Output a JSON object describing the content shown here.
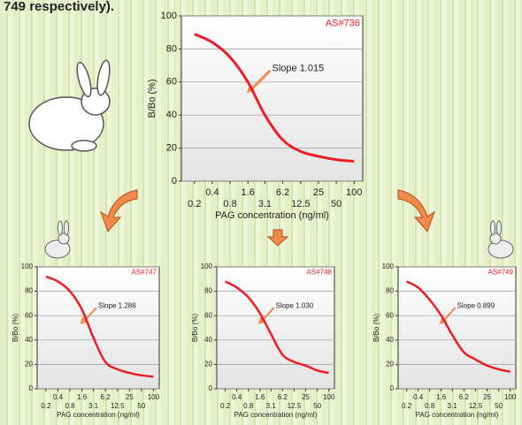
{
  "caption": "749 respectively).",
  "chart_data": [
    {
      "type": "line",
      "corner_label": "AS#736",
      "annotation": "Slope 1.015",
      "xlabel": "PAG concentration (ng/ml)",
      "ylabel": "B/Bo (%)",
      "x": [
        0.2,
        0.4,
        0.8,
        1.6,
        3.1,
        6.2,
        12.5,
        25,
        50,
        100
      ],
      "log_x": true,
      "xlim": [
        0.12,
        140
      ],
      "xticks": [
        0.2,
        0.4,
        0.8,
        1.6,
        3.1,
        6.2,
        12.5,
        25,
        50,
        100
      ],
      "ylim": [
        0,
        100
      ],
      "yticks": [
        0,
        20,
        40,
        60,
        80,
        100
      ],
      "grid": true,
      "series": [
        {
          "color": "#ee1c25",
          "values": [
            89,
            84,
            75,
            60,
            40,
            25,
            18,
            15,
            13,
            12
          ]
        }
      ]
    },
    {
      "type": "line",
      "corner_label": "AS#747",
      "annotation": "Slope 1.286",
      "xlabel": "PAG concentration (ng/ml)",
      "ylabel": "B/Bo (%)",
      "x": [
        0.2,
        0.4,
        0.8,
        1.6,
        3.1,
        6.2,
        12.5,
        25,
        50,
        100
      ],
      "log_x": true,
      "xlim": [
        0.12,
        140
      ],
      "xticks": [
        0.2,
        0.4,
        0.8,
        1.6,
        3.1,
        6.2,
        12.5,
        25,
        50,
        100
      ],
      "ylim": [
        0,
        100
      ],
      "yticks": [
        0,
        20,
        40,
        60,
        80,
        100
      ],
      "grid": true,
      "series": [
        {
          "color": "#ee1c25",
          "values": [
            92,
            88,
            80,
            65,
            42,
            22,
            16,
            13,
            11,
            10
          ]
        }
      ]
    },
    {
      "type": "line",
      "corner_label": "AS#748",
      "annotation": "Slope 1.030",
      "xlabel": "PAG concentration (ng/ml)",
      "ylabel": "B/Bo (%)",
      "x": [
        0.2,
        0.4,
        0.8,
        1.6,
        3.1,
        6.2,
        12.5,
        25,
        50,
        100
      ],
      "log_x": true,
      "xlim": [
        0.12,
        140
      ],
      "xticks": [
        0.2,
        0.4,
        0.8,
        1.6,
        3.1,
        6.2,
        12.5,
        25,
        50,
        100
      ],
      "ylim": [
        0,
        100
      ],
      "yticks": [
        0,
        20,
        40,
        60,
        80,
        100
      ],
      "grid": true,
      "series": [
        {
          "color": "#ee1c25",
          "values": [
            88,
            83,
            75,
            62,
            45,
            28,
            22,
            19,
            15,
            13
          ]
        }
      ]
    },
    {
      "type": "line",
      "corner_label": "AS#749",
      "annotation": "Slope 0.899",
      "xlabel": "PAG concentration (ng/ml)",
      "ylabel": "B/Bo (%)",
      "x": [
        0.2,
        0.4,
        0.8,
        1.6,
        3.1,
        6.2,
        12.5,
        25,
        50,
        100
      ],
      "log_x": true,
      "xlim": [
        0.12,
        140
      ],
      "xticks": [
        0.2,
        0.4,
        0.8,
        1.6,
        3.1,
        6.2,
        12.5,
        25,
        50,
        100
      ],
      "ylim": [
        0,
        100
      ],
      "yticks": [
        0,
        20,
        40,
        60,
        80,
        100
      ],
      "grid": true,
      "series": [
        {
          "color": "#ee1c25",
          "values": [
            88,
            83,
            73,
            60,
            44,
            30,
            24,
            19,
            16,
            14
          ]
        }
      ]
    }
  ]
}
